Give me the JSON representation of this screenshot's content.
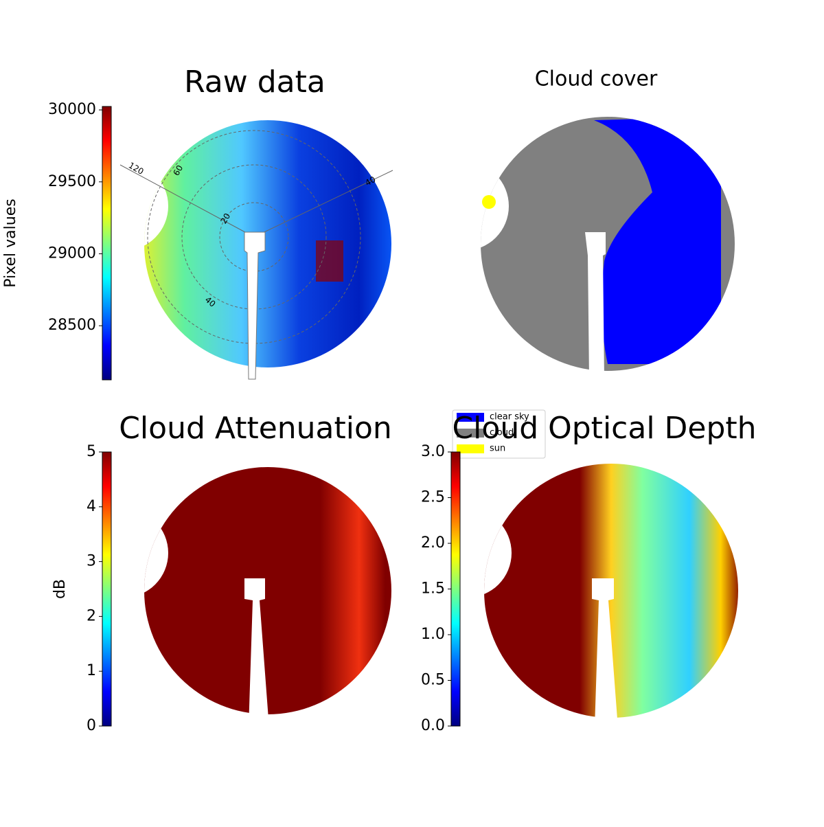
{
  "chart_data": [
    {
      "type": "image",
      "title": "Raw data",
      "ylabel": "Pixel values",
      "ylim": [
        28124,
        30024
      ],
      "yticks": [
        28500,
        29000,
        29500,
        30000
      ],
      "annotations": [
        "120",
        "60",
        "20",
        "40",
        "40"
      ]
    },
    {
      "type": "image",
      "title": "Cloud cover",
      "legend": "lower left",
      "series": [
        {
          "name": "clear sky",
          "color": "#0000ff"
        },
        {
          "name": "cloud",
          "color": "#808080"
        },
        {
          "name": "sun",
          "color": "#ffff00"
        }
      ]
    },
    {
      "type": "image",
      "title": "Cloud Attenuation",
      "ylabel": "dB",
      "ylim": [
        0,
        5
      ],
      "yticks": [
        0,
        1,
        2,
        3,
        4,
        5
      ]
    },
    {
      "type": "image",
      "title": "Cloud Optical Depth",
      "ylim": [
        0,
        3
      ],
      "yticks": [
        {
          "value": 0,
          "label": "0.0"
        },
        0.5,
        {
          "value": 1,
          "label": "1.0"
        },
        1.5,
        {
          "value": 2,
          "label": "2.0"
        },
        2.5,
        {
          "value": 3,
          "label": "3.0"
        }
      ]
    }
  ]
}
